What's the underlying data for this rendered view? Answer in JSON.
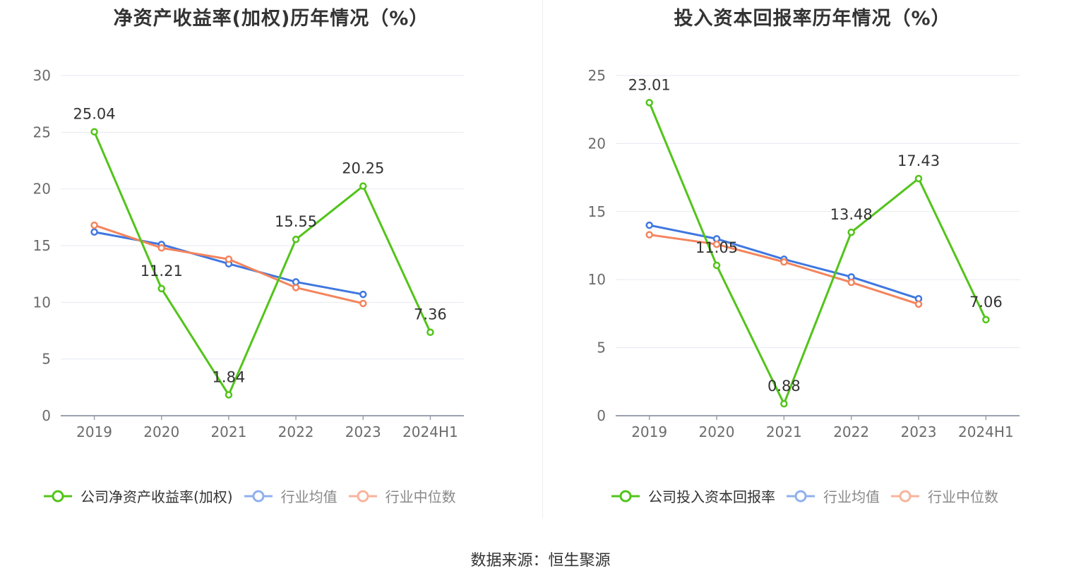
{
  "colors": {
    "company": "#52c41a",
    "industry_avg": "#3f77e0",
    "industry_median": "#f4845c",
    "grid": "#e5e8f0",
    "axis": "#9aa0ad",
    "tick_text": "#6b6b6b"
  },
  "source_text": "数据来源：恒生聚源",
  "chart_data": [
    {
      "type": "line",
      "title": "净资产收益率(加权)历年情况（%）",
      "categories": [
        "2019",
        "2020",
        "2021",
        "2022",
        "2023",
        "2024H1"
      ],
      "ylim": [
        0,
        30
      ],
      "yticks": [
        0,
        5,
        10,
        15,
        20,
        25,
        30
      ],
      "grid": true,
      "legend_position": "bottom",
      "series": [
        {
          "name": "公司净资产收益率(加权)",
          "key": "company",
          "values": [
            25.04,
            11.21,
            1.84,
            15.55,
            20.25,
            7.36
          ],
          "labels": [
            "25.04",
            "11.21",
            "1.84",
            "15.55",
            "20.25",
            "7.36"
          ]
        },
        {
          "name": "行业均值",
          "key": "industry_avg",
          "values": [
            16.2,
            15.1,
            13.4,
            11.8,
            10.7,
            null
          ]
        },
        {
          "name": "行业中位数",
          "key": "industry_median",
          "values": [
            16.8,
            14.8,
            13.8,
            11.3,
            9.9,
            null
          ]
        }
      ]
    },
    {
      "type": "line",
      "title": "投入资本回报率历年情况（%）",
      "categories": [
        "2019",
        "2020",
        "2021",
        "2022",
        "2023",
        "2024H1"
      ],
      "ylim": [
        0,
        25
      ],
      "yticks": [
        0,
        5,
        10,
        15,
        20,
        25
      ],
      "grid": true,
      "legend_position": "bottom",
      "series": [
        {
          "name": "公司投入资本回报率",
          "key": "company",
          "values": [
            23.01,
            11.05,
            0.88,
            13.48,
            17.43,
            7.06
          ],
          "labels": [
            "23.01",
            "11.05",
            "0.88",
            "13.48",
            "17.43",
            "7.06"
          ]
        },
        {
          "name": "行业均值",
          "key": "industry_avg",
          "values": [
            14.0,
            13.0,
            11.5,
            10.2,
            8.6,
            null
          ]
        },
        {
          "name": "行业中位数",
          "key": "industry_median",
          "values": [
            13.3,
            12.6,
            11.3,
            9.8,
            8.2,
            null
          ]
        }
      ]
    }
  ]
}
